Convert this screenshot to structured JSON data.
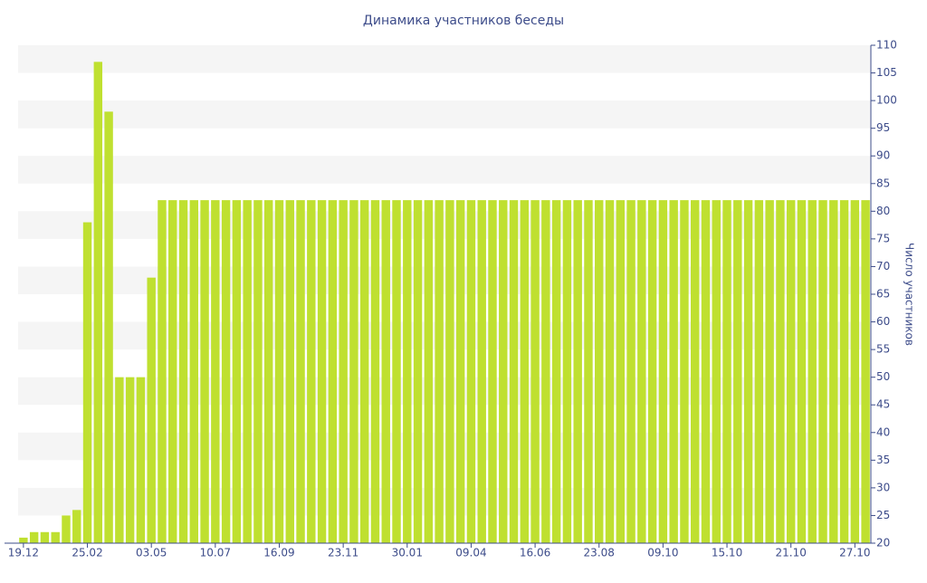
{
  "chart_data": {
    "type": "bar",
    "title": "Динамика участников беседы",
    "y_axis_label": "Число участников",
    "categories": [
      "19.12",
      null,
      null,
      null,
      null,
      null,
      "25.02",
      null,
      null,
      null,
      null,
      null,
      "03.05",
      null,
      null,
      null,
      null,
      null,
      "10.07",
      null,
      null,
      null,
      null,
      null,
      "16.09",
      null,
      null,
      null,
      null,
      null,
      "23.11",
      null,
      null,
      null,
      null,
      null,
      "30.01",
      null,
      null,
      null,
      null,
      null,
      "09.04",
      null,
      null,
      null,
      null,
      null,
      "16.06",
      null,
      null,
      null,
      null,
      null,
      "23.08",
      null,
      null,
      null,
      null,
      null,
      "09.10",
      null,
      null,
      null,
      null,
      null,
      "15.10",
      null,
      null,
      null,
      null,
      null,
      "21.10",
      null,
      null,
      null,
      null,
      null,
      "27.10",
      null
    ],
    "values": [
      21,
      22,
      22,
      22,
      25,
      26,
      78,
      107,
      98,
      50,
      50,
      50,
      68,
      82,
      82,
      82,
      82,
      82,
      82,
      82,
      82,
      82,
      82,
      82,
      82,
      82,
      82,
      82,
      82,
      82,
      82,
      82,
      82,
      82,
      82,
      82,
      82,
      82,
      82,
      82,
      82,
      82,
      82,
      82,
      82,
      82,
      82,
      82,
      82,
      82,
      82,
      82,
      82,
      82,
      82,
      82,
      82,
      82,
      82,
      82,
      82,
      82,
      82,
      82,
      82,
      82,
      82,
      82,
      82,
      82,
      82,
      82,
      82,
      82,
      82,
      82,
      82,
      82,
      82,
      82
    ],
    "color": "#bfe030",
    "ylim": [
      20,
      110
    ],
    "yticks": [
      20,
      25,
      30,
      35,
      40,
      45,
      50,
      55,
      60,
      65,
      70,
      75,
      80,
      85,
      90,
      95,
      100,
      105,
      110
    ],
    "grid": "stripes",
    "y_axis_side": "right"
  }
}
